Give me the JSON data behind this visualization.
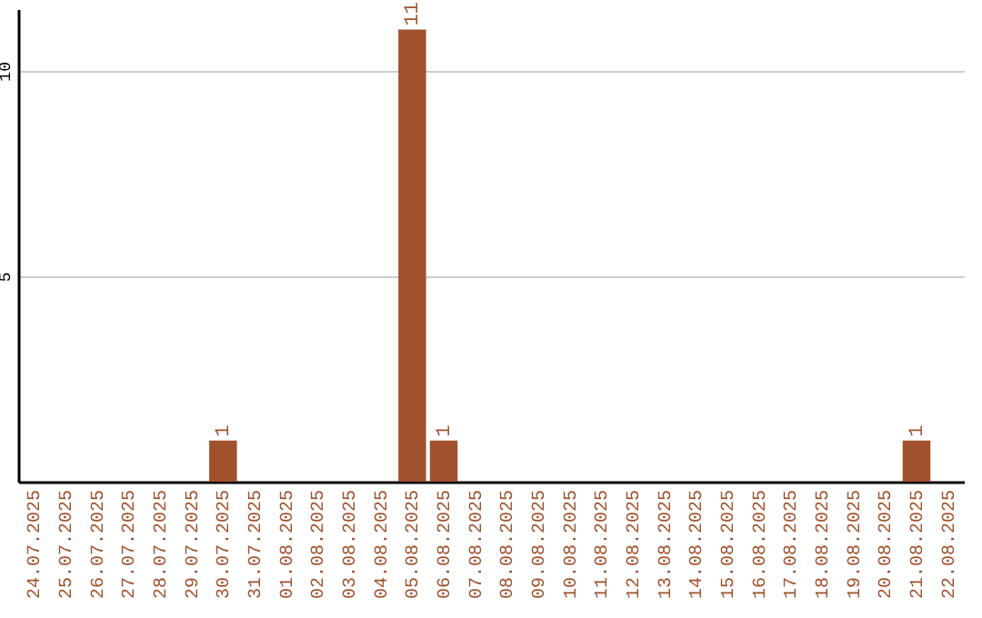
{
  "chart_data": {
    "type": "bar",
    "categories": [
      "24.07.2025",
      "25.07.2025",
      "26.07.2025",
      "27.07.2025",
      "28.07.2025",
      "29.07.2025",
      "30.07.2025",
      "31.07.2025",
      "01.08.2025",
      "02.08.2025",
      "03.08.2025",
      "04.08.2025",
      "05.08.2025",
      "06.08.2025",
      "07.08.2025",
      "08.08.2025",
      "09.08.2025",
      "10.08.2025",
      "11.08.2025",
      "12.08.2025",
      "13.08.2025",
      "14.08.2025",
      "15.08.2025",
      "16.08.2025",
      "17.08.2025",
      "18.08.2025",
      "19.08.2025",
      "20.08.2025",
      "21.08.2025",
      "22.08.2025"
    ],
    "values": [
      0,
      0,
      0,
      0,
      0,
      0,
      1,
      0,
      0,
      0,
      0,
      0,
      11,
      1,
      0,
      0,
      0,
      0,
      0,
      0,
      0,
      0,
      0,
      0,
      0,
      0,
      0,
      0,
      1,
      0
    ],
    "value_labels": [
      null,
      null,
      null,
      null,
      null,
      null,
      "1",
      null,
      null,
      null,
      null,
      null,
      "11",
      "1",
      null,
      null,
      null,
      null,
      null,
      null,
      null,
      null,
      null,
      null,
      null,
      null,
      null,
      null,
      "1",
      null
    ],
    "color": "#a0522d",
    "ylim": [
      0,
      11.5
    ],
    "yticks": [
      5,
      10
    ],
    "grid": "y"
  }
}
